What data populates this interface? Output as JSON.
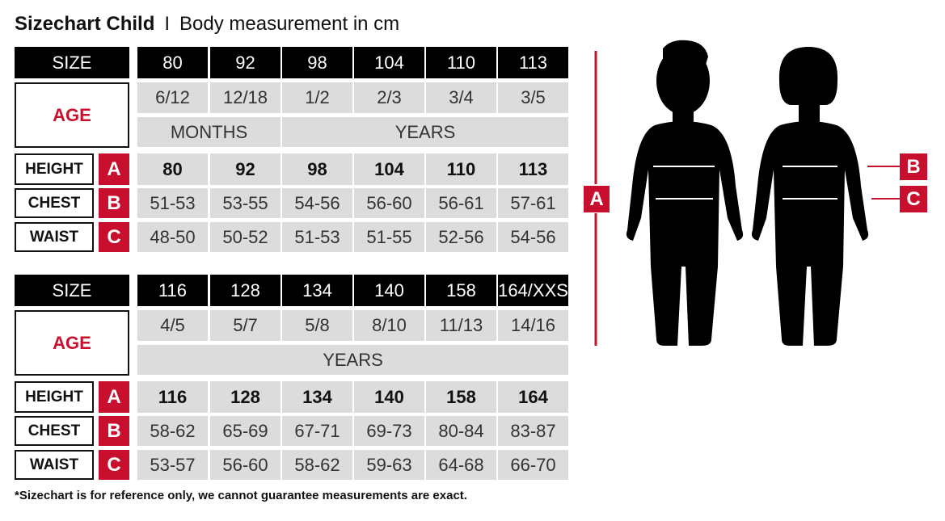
{
  "title": {
    "main": "Sizechart Child",
    "separator": "I",
    "subtitle": "Body measurement in cm"
  },
  "labels": {
    "size": "SIZE",
    "age": "AGE",
    "height": "HEIGHT",
    "chest": "CHEST",
    "waist": "WAIST",
    "a": "A",
    "b": "B",
    "c": "C"
  },
  "tables": [
    {
      "sizes": [
        "80",
        "92",
        "98",
        "104",
        "110",
        "113"
      ],
      "ages": [
        "6/12",
        "12/18",
        "1/2",
        "2/3",
        "3/4",
        "3/5"
      ],
      "age_units": [
        {
          "label": "MONTHS",
          "span": 2
        },
        {
          "label": "YEARS",
          "span": 4
        }
      ],
      "height": [
        "80",
        "92",
        "98",
        "104",
        "110",
        "113"
      ],
      "chest": [
        "51-53",
        "53-55",
        "54-56",
        "56-60",
        "56-61",
        "57-61"
      ],
      "waist": [
        "48-50",
        "50-52",
        "51-53",
        "51-55",
        "52-56",
        "54-56"
      ]
    },
    {
      "sizes": [
        "116",
        "128",
        "134",
        "140",
        "158",
        "164/XXS"
      ],
      "ages": [
        "4/5",
        "5/7",
        "5/8",
        "8/10",
        "11/13",
        "14/16"
      ],
      "age_units": [
        {
          "label": "YEARS",
          "span": 6
        }
      ],
      "height": [
        "116",
        "128",
        "134",
        "140",
        "158",
        "164"
      ],
      "chest": [
        "58-62",
        "65-69",
        "67-71",
        "69-73",
        "80-84",
        "83-87"
      ],
      "waist": [
        "53-57",
        "56-60",
        "58-62",
        "59-63",
        "64-68",
        "66-70"
      ]
    }
  ],
  "footnote": "*Sizechart is for reference only, we cannot guarantee measurements are exact.",
  "colors": {
    "accent": "#c8102e",
    "header": "#000000",
    "cell": "#dcdcdc"
  }
}
